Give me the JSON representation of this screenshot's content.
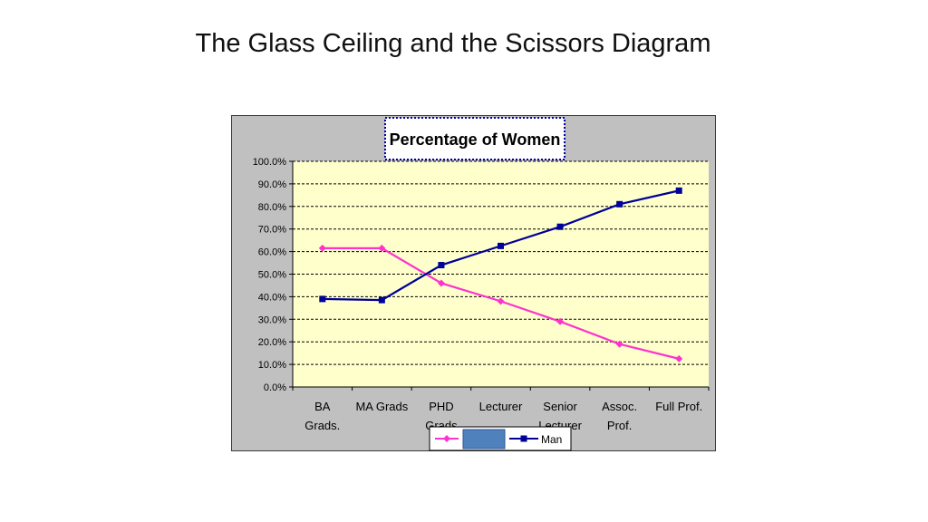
{
  "slide": {
    "title": "The Glass Ceiling and the Scissors Diagram"
  },
  "chart_data": {
    "type": "line",
    "title": "Percentage of Women",
    "categories": [
      [
        "BA",
        "Grads."
      ],
      [
        "MA Grads"
      ],
      [
        "PHD",
        "Grads"
      ],
      [
        "Lecturer"
      ],
      [
        "Senior",
        "Lecturer"
      ],
      [
        "Assoc.",
        "Prof."
      ],
      [
        "Full Prof."
      ]
    ],
    "ylim": [
      0,
      100
    ],
    "y_ticks": [
      0,
      10,
      20,
      30,
      40,
      50,
      60,
      70,
      80,
      90,
      100
    ],
    "y_tick_labels": [
      "0.0%",
      "10.0%",
      "20.0%",
      "30.0%",
      "40.0%",
      "50.0%",
      "60.0%",
      "70.0%",
      "80.0%",
      "90.0%",
      "100.0%"
    ],
    "grid": true,
    "legend_position": "bottom",
    "series": [
      {
        "name": "",
        "color": "#ff33cc",
        "marker": "diamond",
        "values": [
          61.5,
          61.5,
          46,
          38,
          29,
          19,
          12.5
        ]
      },
      {
        "name": "Man",
        "color": "#000099",
        "marker": "square",
        "values": [
          39,
          38.5,
          54,
          62.5,
          71,
          81,
          87
        ]
      }
    ],
    "legend_box_color": "#4f81bd"
  }
}
